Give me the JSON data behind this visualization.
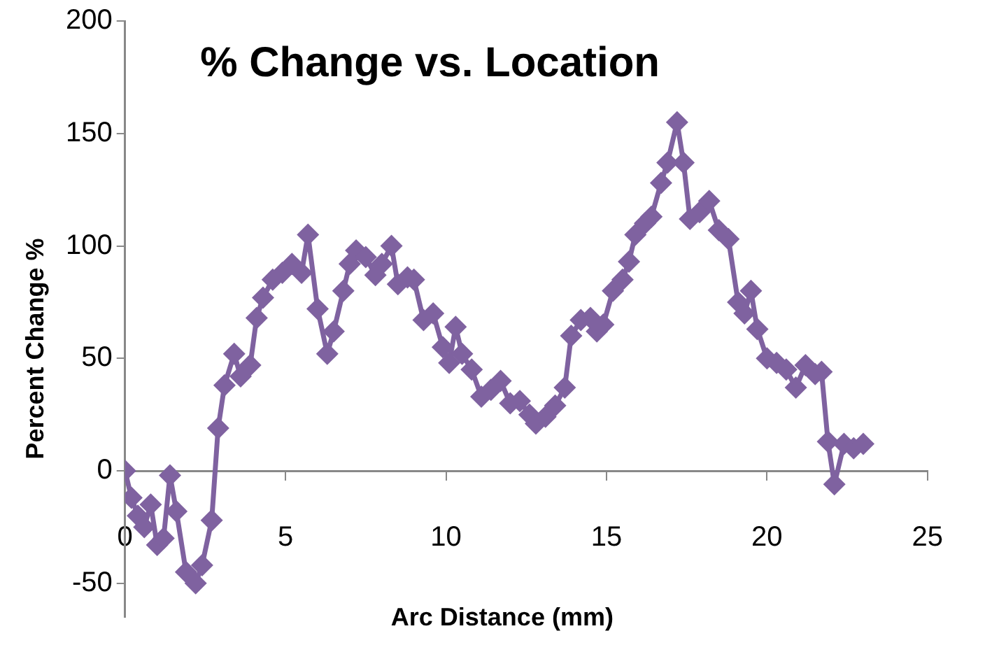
{
  "chart_data": {
    "type": "line",
    "title": "% Change vs. Location",
    "xlabel": "Arc Distance (mm)",
    "ylabel": "Percent Change %",
    "series": [
      {
        "color": "#7f62a0",
        "x": [
          0,
          0.2,
          0.4,
          0.6,
          0.8,
          1.0,
          1.2,
          1.4,
          1.6,
          1.9,
          2.2,
          2.4,
          2.7,
          2.9,
          3.1,
          3.4,
          3.6,
          3.9,
          4.1,
          4.3,
          4.6,
          4.9,
          5.2,
          5.5,
          5.7,
          6.0,
          6.3,
          6.5,
          6.8,
          7.0,
          7.2,
          7.5,
          7.8,
          8.0,
          8.3,
          8.5,
          8.8,
          9.0,
          9.3,
          9.6,
          9.9,
          10.1,
          10.3,
          10.5,
          10.8,
          11.1,
          11.4,
          11.7,
          12.0,
          12.3,
          12.6,
          12.8,
          13.1,
          13.4,
          13.7,
          13.9,
          14.2,
          14.5,
          14.7,
          14.9,
          15.2,
          15.5,
          15.7,
          15.9,
          16.2,
          16.4,
          16.7,
          16.9,
          17.2,
          17.4,
          17.6,
          17.9,
          18.2,
          18.5,
          18.8,
          19.1,
          19.3,
          19.5,
          19.7,
          20.0,
          20.3,
          20.6,
          20.9,
          21.2,
          21.5,
          21.7,
          21.9,
          22.1,
          22.4,
          22.7,
          23.0
        ],
        "values": [
          0,
          -12,
          -20,
          -25,
          -15,
          -33,
          -30,
          -2,
          -18,
          -45,
          -50,
          -42,
          -22,
          19,
          38,
          52,
          42,
          47,
          68,
          77,
          85,
          88,
          92,
          88,
          105,
          72,
          52,
          62,
          80,
          92,
          98,
          95,
          87,
          92,
          100,
          83,
          86,
          85,
          67,
          70,
          55,
          48,
          64,
          52,
          45,
          33,
          36,
          40,
          30,
          31,
          25,
          21,
          24,
          29,
          37,
          60,
          67,
          68,
          62,
          65,
          80,
          85,
          93,
          105,
          110,
          113,
          128,
          137,
          155,
          137,
          112,
          115,
          120,
          107,
          103,
          75,
          70,
          80,
          63,
          50,
          48,
          45,
          37,
          47,
          43,
          44,
          13,
          -6,
          12,
          10,
          12
        ]
      }
    ],
    "xlim": [
      0,
      25
    ],
    "xticks": [
      0,
      5,
      10,
      15,
      20,
      25
    ],
    "ylim": [
      -65,
      200
    ],
    "yticks": [
      -50,
      0,
      50,
      100,
      150,
      200
    ],
    "grid": false,
    "legend": false,
    "marker": "diamond",
    "line_style": "solid"
  }
}
